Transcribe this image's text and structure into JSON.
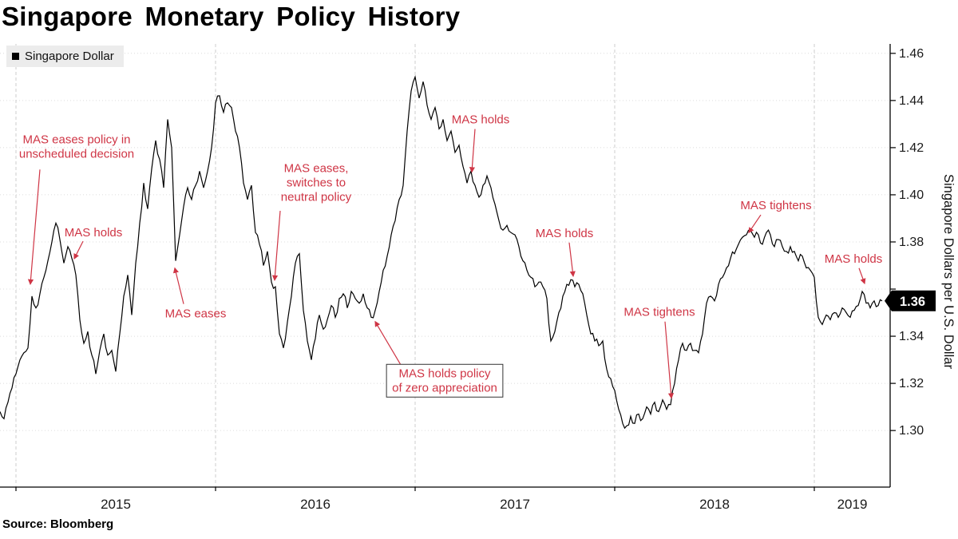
{
  "chart_data": {
    "type": "line",
    "title": "Singapore Monetary Policy History",
    "ylabel": "Singapore Dollars per U.S. Dollar",
    "source": "Source: Bloomberg",
    "legend_position": "top-left",
    "grid": true,
    "annotation_color": "#cf3545",
    "xlim": [
      2014.92,
      2019.38
    ],
    "ylim": [
      1.276,
      1.464
    ],
    "y_ticks": [
      1.3,
      1.32,
      1.34,
      1.36,
      1.38,
      1.4,
      1.42,
      1.44,
      1.46
    ],
    "x_gridlines": [
      2015,
      2016,
      2017,
      2018,
      2019
    ],
    "x_ticks": [
      {
        "label": "2015",
        "t": 2015.5
      },
      {
        "label": "2016",
        "t": 2016.5
      },
      {
        "label": "2017",
        "t": 2017.5
      },
      {
        "label": "2018",
        "t": 2018.5
      },
      {
        "label": "2019",
        "t": 2019.19
      }
    ],
    "last_value": {
      "label": "1.36",
      "v": 1.355
    },
    "series": [
      {
        "name": "Singapore Dollar",
        "color": "#000000",
        "t_start": 2014.92,
        "t_step": 0.02,
        "values": [
          1.308,
          1.305,
          1.312,
          1.318,
          1.324,
          1.33,
          1.333,
          1.335,
          1.357,
          1.352,
          1.358,
          1.365,
          1.372,
          1.38,
          1.388,
          1.381,
          1.371,
          1.378,
          1.373,
          1.366,
          1.347,
          1.337,
          1.342,
          1.332,
          1.324,
          1.334,
          1.341,
          1.332,
          1.334,
          1.325,
          1.341,
          1.357,
          1.366,
          1.349,
          1.371,
          1.388,
          1.405,
          1.394,
          1.411,
          1.423,
          1.415,
          1.403,
          1.432,
          1.42,
          1.372,
          1.383,
          1.395,
          1.403,
          1.398,
          1.404,
          1.41,
          1.403,
          1.41,
          1.42,
          1.439,
          1.442,
          1.435,
          1.439,
          1.437,
          1.427,
          1.42,
          1.405,
          1.398,
          1.404,
          1.384,
          1.379,
          1.37,
          1.376,
          1.363,
          1.361,
          1.341,
          1.335,
          1.346,
          1.357,
          1.371,
          1.375,
          1.351,
          1.338,
          1.33,
          1.339,
          1.349,
          1.343,
          1.347,
          1.353,
          1.348,
          1.356,
          1.358,
          1.352,
          1.359,
          1.356,
          1.354,
          1.358,
          1.352,
          1.348,
          1.351,
          1.359,
          1.368,
          1.374,
          1.383,
          1.389,
          1.398,
          1.404,
          1.427,
          1.444,
          1.45,
          1.441,
          1.448,
          1.438,
          1.432,
          1.437,
          1.428,
          1.432,
          1.423,
          1.427,
          1.418,
          1.421,
          1.412,
          1.405,
          1.41,
          1.404,
          1.399,
          1.404,
          1.408,
          1.403,
          1.396,
          1.389,
          1.385,
          1.387,
          1.384,
          1.383,
          1.378,
          1.372,
          1.368,
          1.365,
          1.361,
          1.363,
          1.361,
          1.356,
          1.338,
          1.342,
          1.35,
          1.357,
          1.362,
          1.364,
          1.361,
          1.362,
          1.358,
          1.349,
          1.341,
          1.338,
          1.336,
          1.338,
          1.326,
          1.322,
          1.317,
          1.309,
          1.303,
          1.302,
          1.306,
          1.303,
          1.307,
          1.305,
          1.31,
          1.307,
          1.312,
          1.308,
          1.313,
          1.309,
          1.311,
          1.32,
          1.33,
          1.337,
          1.334,
          1.337,
          1.334,
          1.333,
          1.341,
          1.354,
          1.357,
          1.355,
          1.362,
          1.365,
          1.369,
          1.373,
          1.375,
          1.379,
          1.382,
          1.383,
          1.385,
          1.382,
          1.383,
          1.379,
          1.384,
          1.383,
          1.378,
          1.381,
          1.378,
          1.376,
          1.378,
          1.376,
          1.372,
          1.374,
          1.369,
          1.368,
          1.365,
          1.348,
          1.345,
          1.349,
          1.347,
          1.35,
          1.348,
          1.352,
          1.35,
          1.348,
          1.351,
          1.353,
          1.359,
          1.354,
          1.352,
          1.355,
          1.353,
          1.355
        ]
      }
    ],
    "annotations": [
      {
        "lines": [
          "MAS eases policy in",
          "unscheduled decision"
        ],
        "t": 2015.304,
        "v": 1.4205,
        "box": false,
        "arrow": {
          "from": {
            "t": 2015.12,
            "v": 1.4107
          },
          "to": {
            "t": 2015.072,
            "v": 1.3621
          }
        }
      },
      {
        "lines": [
          "MAS holds"
        ],
        "t": 2015.388,
        "v": 1.384,
        "box": false,
        "arrow": {
          "from": {
            "t": 2015.336,
            "v": 1.3803
          },
          "to": {
            "t": 2015.292,
            "v": 1.3729
          }
        }
      },
      {
        "lines": [
          "MAS eases"
        ],
        "t": 2015.9,
        "v": 1.3496,
        "box": false,
        "arrow": {
          "from": {
            "t": 2015.84,
            "v": 1.3537
          },
          "to": {
            "t": 2015.796,
            "v": 1.3689
          }
        }
      },
      {
        "lines": [
          "MAS eases,",
          "switches to",
          "neutral policy"
        ],
        "t": 2016.504,
        "v": 1.4053,
        "box": false,
        "arrow": {
          "from": {
            "t": 2016.324,
            "v": 1.3932
          },
          "to": {
            "t": 2016.296,
            "v": 1.3638
          }
        }
      },
      {
        "lines": [
          "MAS holds policy",
          "of zero appreciation"
        ],
        "t": 2017.148,
        "v": 1.3213,
        "box": true,
        "arrow": {
          "from": {
            "t": 2016.936,
            "v": 1.3267
          },
          "to": {
            "t": 2016.8,
            "v": 1.3462
          }
        }
      },
      {
        "lines": [
          "MAS holds"
        ],
        "t": 2017.328,
        "v": 1.432,
        "box": false,
        "arrow": {
          "from": {
            "t": 2017.3,
            "v": 1.4279
          },
          "to": {
            "t": 2017.284,
            "v": 1.4097
          }
        }
      },
      {
        "lines": [
          "MAS holds"
        ],
        "t": 2017.748,
        "v": 1.3837,
        "box": false,
        "arrow": {
          "from": {
            "t": 2017.772,
            "v": 1.3797
          },
          "to": {
            "t": 2017.792,
            "v": 1.3655
          }
        }
      },
      {
        "lines": [
          "MAS tightens"
        ],
        "t": 2018.224,
        "v": 1.3503,
        "box": false,
        "arrow": {
          "from": {
            "t": 2018.252,
            "v": 1.3462
          },
          "to": {
            "t": 2018.284,
            "v": 1.3138
          }
        }
      },
      {
        "lines": [
          "MAS tightens"
        ],
        "t": 2018.808,
        "v": 1.3955,
        "box": false,
        "arrow": {
          "from": {
            "t": 2018.732,
            "v": 1.3915
          },
          "to": {
            "t": 2018.672,
            "v": 1.384
          }
        }
      },
      {
        "lines": [
          "MAS holds"
        ],
        "t": 2019.196,
        "v": 1.3729,
        "box": false,
        "arrow": {
          "from": {
            "t": 2019.224,
            "v": 1.3689
          },
          "to": {
            "t": 2019.252,
            "v": 1.3624
          }
        }
      }
    ]
  }
}
